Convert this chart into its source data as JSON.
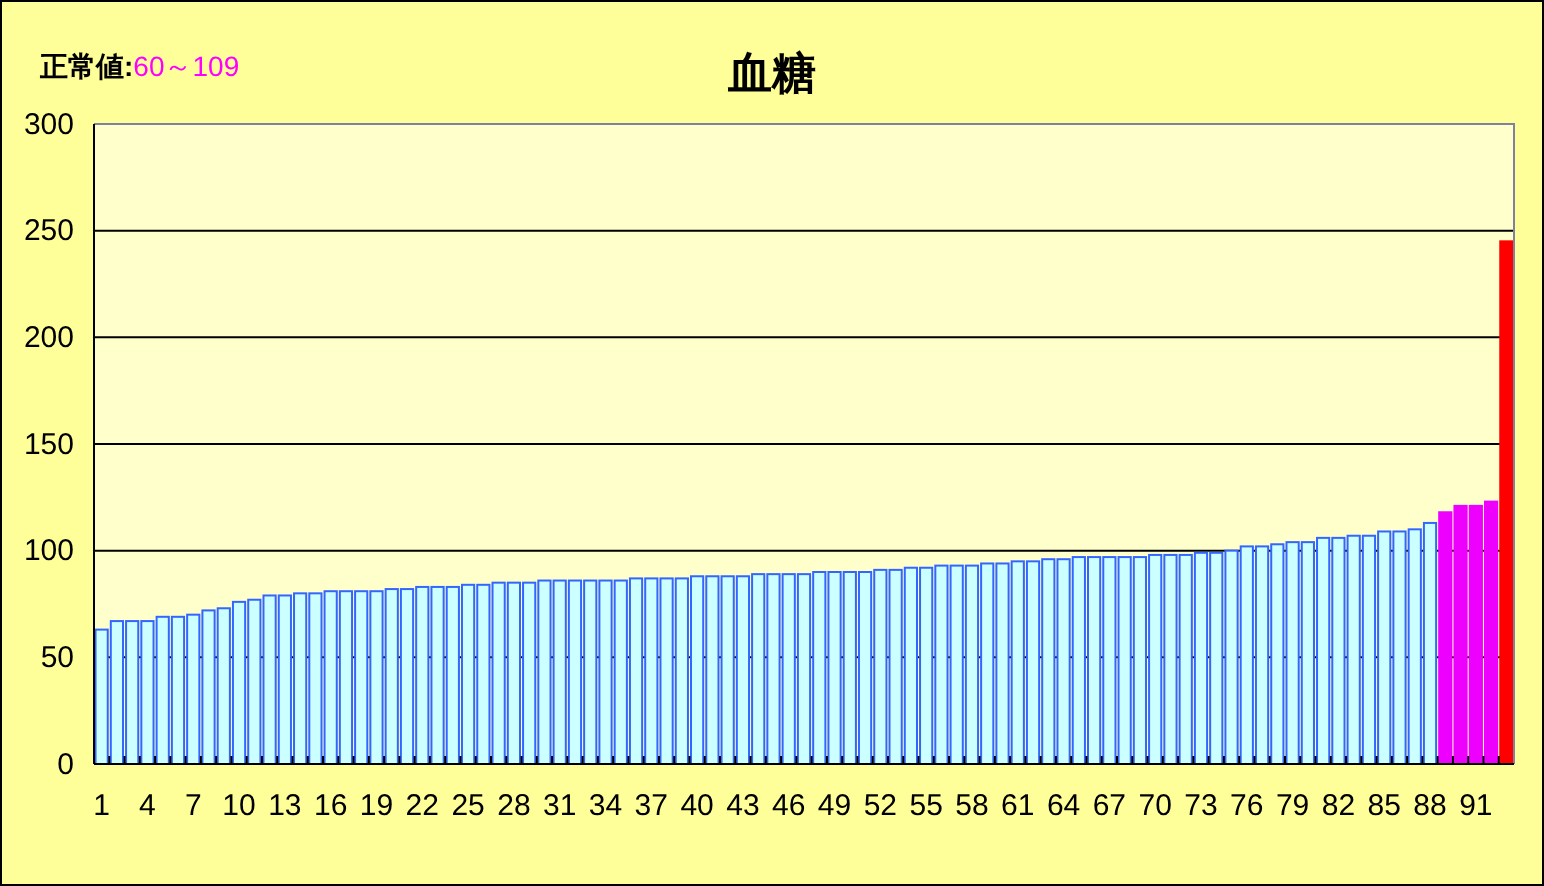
{
  "chart_data": {
    "type": "bar",
    "title": "血糖",
    "annotations": [
      "正常値:",
      "60～109"
    ],
    "categories": [
      "1",
      null,
      null,
      "4",
      null,
      null,
      "7",
      null,
      null,
      "10",
      null,
      null,
      "13",
      null,
      null,
      "16",
      null,
      null,
      "19",
      null,
      null,
      "22",
      null,
      null,
      "25",
      null,
      null,
      "28",
      null,
      null,
      "31",
      null,
      null,
      "34",
      null,
      null,
      "37",
      null,
      null,
      "40",
      null,
      null,
      "43",
      null,
      null,
      "46",
      null,
      null,
      "49",
      null,
      null,
      "52",
      null,
      null,
      "55",
      null,
      null,
      "58",
      null,
      null,
      "61",
      null,
      null,
      "64",
      null,
      null,
      "67",
      null,
      null,
      "70",
      null,
      null,
      "73",
      null,
      null,
      "76",
      null,
      null,
      "79",
      null,
      null,
      "82",
      null,
      null,
      "85",
      null,
      null,
      "88",
      null,
      null,
      "91",
      null,
      null
    ],
    "values": [
      63,
      67,
      67,
      67,
      69,
      69,
      70,
      72,
      73,
      76,
      77,
      79,
      79,
      80,
      80,
      81,
      81,
      81,
      81,
      82,
      82,
      83,
      83,
      83,
      84,
      84,
      85,
      85,
      85,
      86,
      86,
      86,
      86,
      86,
      86,
      87,
      87,
      87,
      87,
      88,
      88,
      88,
      88,
      89,
      89,
      89,
      89,
      90,
      90,
      90,
      90,
      91,
      91,
      92,
      92,
      93,
      93,
      93,
      94,
      94,
      95,
      95,
      96,
      96,
      97,
      97,
      97,
      97,
      97,
      98,
      98,
      98,
      99,
      99,
      100,
      102,
      102,
      103,
      104,
      104,
      106,
      106,
      107,
      107,
      109,
      109,
      110,
      113,
      118,
      121,
      121,
      123,
      245
    ],
    "colors": [
      "#ccffff",
      "#ccffff",
      "#ccffff",
      "#ccffff",
      "#ccffff",
      "#ccffff",
      "#ccffff",
      "#ccffff",
      "#ccffff",
      "#ccffff",
      "#ccffff",
      "#ccffff",
      "#ccffff",
      "#ccffff",
      "#ccffff",
      "#ccffff",
      "#ccffff",
      "#ccffff",
      "#ccffff",
      "#ccffff",
      "#ccffff",
      "#ccffff",
      "#ccffff",
      "#ccffff",
      "#ccffff",
      "#ccffff",
      "#ccffff",
      "#ccffff",
      "#ccffff",
      "#ccffff",
      "#ccffff",
      "#ccffff",
      "#ccffff",
      "#ccffff",
      "#ccffff",
      "#ccffff",
      "#ccffff",
      "#ccffff",
      "#ccffff",
      "#ccffff",
      "#ccffff",
      "#ccffff",
      "#ccffff",
      "#ccffff",
      "#ccffff",
      "#ccffff",
      "#ccffff",
      "#ccffff",
      "#ccffff",
      "#ccffff",
      "#ccffff",
      "#ccffff",
      "#ccffff",
      "#ccffff",
      "#ccffff",
      "#ccffff",
      "#ccffff",
      "#ccffff",
      "#ccffff",
      "#ccffff",
      "#ccffff",
      "#ccffff",
      "#ccffff",
      "#ccffff",
      "#ccffff",
      "#ccffff",
      "#ccffff",
      "#ccffff",
      "#ccffff",
      "#ccffff",
      "#ccffff",
      "#ccffff",
      "#ccffff",
      "#ccffff",
      "#ccffff",
      "#ccffff",
      "#ccffff",
      "#ccffff",
      "#ccffff",
      "#ccffff",
      "#ccffff",
      "#ccffff",
      "#ccffff",
      "#ccffff",
      "#ccffff",
      "#ccffff",
      "#ccffff",
      "#ccffff",
      "#ee00ff",
      "#ee00ff",
      "#ee00ff",
      "#ee00ff",
      "#ff0000"
    ],
    "ylim": [
      0,
      300
    ],
    "yticks": [
      0,
      50,
      100,
      150,
      200,
      250,
      300
    ],
    "grid": "y"
  }
}
